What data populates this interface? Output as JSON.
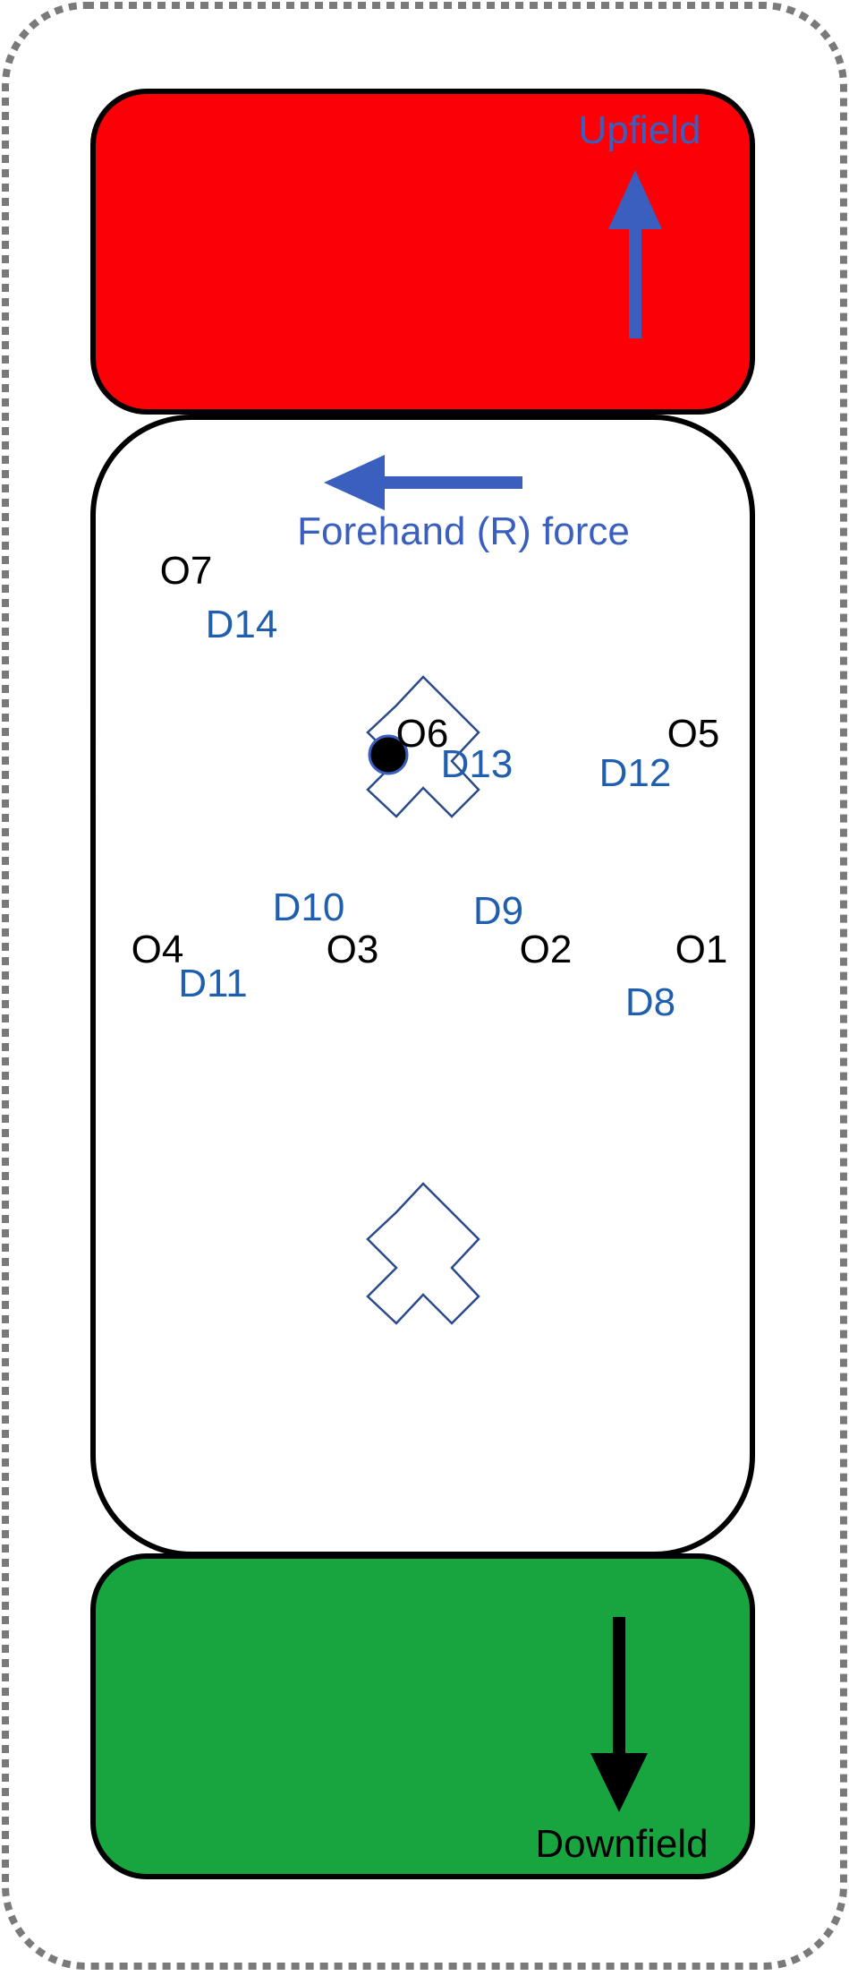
{
  "colors": {
    "upfield_zone": "#fb0007",
    "downfield_zone": "#18a53f",
    "field": "#ffffff",
    "outline": "#000000",
    "defense": "#1f5fae",
    "offense": "#000000",
    "arrow_blue": "#3a5fbf",
    "cross_stroke": "#2b4a8a",
    "dotted_border": "#7a7a7a"
  },
  "labels": {
    "upfield": "Upfield",
    "downfield": "Downfield",
    "force": "Forehand (R) force"
  },
  "offense": [
    {
      "label": "O1"
    },
    {
      "label": "O2"
    },
    {
      "label": "O3"
    },
    {
      "label": "O4"
    },
    {
      "label": "O5"
    },
    {
      "label": "O6"
    },
    {
      "label": "O7"
    }
  ],
  "defense": [
    {
      "label": "D8"
    },
    {
      "label": "D9"
    },
    {
      "label": "D10"
    },
    {
      "label": "D11"
    },
    {
      "label": "D12"
    },
    {
      "label": "D13"
    },
    {
      "label": "D14"
    }
  ],
  "markers": {
    "disc": "disc-icon",
    "cross": "cross-marker-icon"
  }
}
